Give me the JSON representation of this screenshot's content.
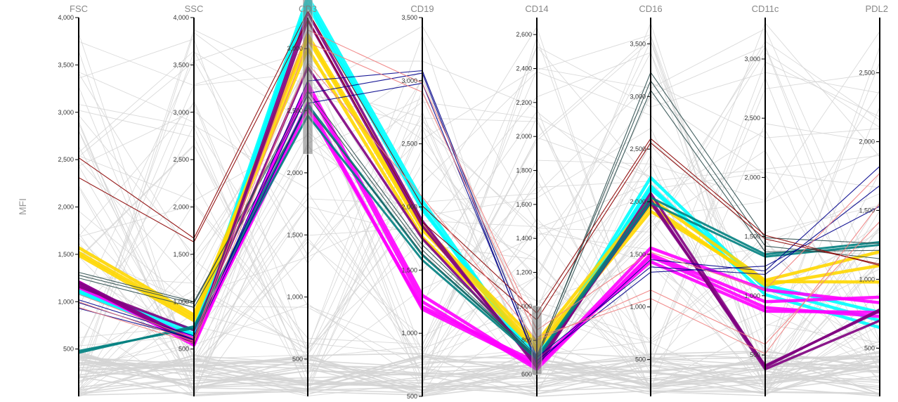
{
  "chart_data": {
    "type": "parallel-coordinates",
    "ylabel": "MFI",
    "dimensions": [
      "FSC",
      "SSC",
      "CD3",
      "CD19",
      "CD14",
      "CD16",
      "CD11c",
      "PDL2"
    ],
    "axes": [
      {
        "name": "FSC",
        "range": [
          0,
          4000
        ],
        "ticks": [
          500,
          1000,
          1500,
          2000,
          2500,
          3000,
          3500,
          4000
        ]
      },
      {
        "name": "SSC",
        "range": [
          0,
          4000
        ],
        "ticks": [
          500,
          1000,
          1500,
          2000,
          2500,
          3000,
          3500,
          4000
        ]
      },
      {
        "name": "CD3",
        "range": [
          200,
          3250
        ],
        "ticks": [
          500,
          1000,
          1500,
          2000,
          2500,
          3000
        ]
      },
      {
        "name": "CD19",
        "range": [
          500,
          3500
        ],
        "ticks": [
          500,
          1000,
          1500,
          2000,
          2500,
          3000,
          3500
        ]
      },
      {
        "name": "CD14",
        "range": [
          470,
          2700
        ],
        "ticks": [
          600,
          800,
          1000,
          1200,
          1400,
          1600,
          1800,
          2000,
          2200,
          2400,
          2600
        ]
      },
      {
        "name": "CD16",
        "range": [
          150,
          3750
        ],
        "ticks": [
          500,
          1000,
          1500,
          2000,
          2500,
          3000,
          3500
        ]
      },
      {
        "name": "CD11c",
        "range": [
          150,
          3350
        ],
        "ticks": [
          500,
          1000,
          1500,
          2000,
          2500,
          3000
        ]
      },
      {
        "name": "PDL2",
        "range": [
          150,
          2900
        ],
        "ticks": [
          500,
          1000,
          1500,
          2000,
          2500
        ]
      }
    ],
    "brushes": [
      {
        "axis": "CD3",
        "range": [
          2150,
          3500
        ]
      },
      {
        "axis": "CD14",
        "range": [
          600,
          1000
        ]
      }
    ],
    "highlighted_series": [
      {
        "color": "#00FFFF",
        "values": [
          1120,
          700,
          3420,
          2050,
          660,
          2230,
          1060,
          700
        ]
      },
      {
        "color": "#00FFFF",
        "values": [
          1100,
          660,
          3380,
          2000,
          650,
          2150,
          1010,
          650
        ]
      },
      {
        "color": "#00FFFF",
        "values": [
          1090,
          640,
          3350,
          1980,
          700,
          2120,
          1090,
          760
        ]
      },
      {
        "color": "#FFD700",
        "values": [
          1570,
          860,
          3110,
          1850,
          790,
          2030,
          1130,
          1200
        ]
      },
      {
        "color": "#FFD700",
        "values": [
          1520,
          830,
          3080,
          1820,
          760,
          1960,
          1090,
          1100
        ]
      },
      {
        "color": "#FFD700",
        "values": [
          1490,
          800,
          3000,
          1760,
          740,
          1910,
          1120,
          980
        ]
      },
      {
        "color": "#FF00FF",
        "values": [
          1210,
          560,
          2720,
          1300,
          640,
          1560,
          1050,
          830
        ]
      },
      {
        "color": "#FF00FF",
        "values": [
          1190,
          540,
          2690,
          1250,
          630,
          1500,
          950,
          870
        ]
      },
      {
        "color": "#FF00FF",
        "values": [
          1180,
          590,
          2560,
          1190,
          650,
          1480,
          900,
          730
        ]
      },
      {
        "color": "#FF00FF",
        "values": [
          1150,
          610,
          2520,
          1210,
          670,
          1430,
          870,
          760
        ]
      },
      {
        "color": "#800080",
        "values": [
          1210,
          590,
          3290,
          1890,
          640,
          2080,
          400,
          780
        ]
      },
      {
        "color": "#800080",
        "values": [
          1190,
          560,
          3230,
          1850,
          660,
          2020,
          380,
          700
        ]
      },
      {
        "color": "#800080",
        "values": [
          1160,
          700,
          2850,
          1750,
          680,
          1990,
          410,
          770
        ]
      },
      {
        "color": "#008080",
        "values": [
          480,
          720,
          2550,
          1620,
          700,
          2040,
          1350,
          1270
        ]
      },
      {
        "color": "#008080",
        "values": [
          460,
          740,
          2460,
          1580,
          690,
          1990,
          1330,
          1250
        ]
      },
      {
        "color": "#2F4F4F",
        "values": [
          1310,
          1000,
          2620,
          1660,
          700,
          3230,
          1490,
          1260
        ]
      },
      {
        "color": "#2F4F4F",
        "values": [
          1280,
          980,
          2660,
          1700,
          710,
          3150,
          1420,
          1150
        ]
      },
      {
        "color": "#2F4F4F",
        "values": [
          1250,
          940,
          2530,
          1630,
          690,
          3060,
          1370,
          1210
        ]
      },
      {
        "color": "#00008B",
        "values": [
          1020,
          640,
          2640,
          3060,
          660,
          1450,
          1210,
          1820
        ]
      },
      {
        "color": "#00008B",
        "values": [
          990,
          600,
          2740,
          3080,
          700,
          1380,
          1180,
          1680
        ]
      },
      {
        "color": "#00008B",
        "values": [
          930,
          610,
          2560,
          2980,
          680,
          1330,
          1250,
          1530
        ]
      },
      {
        "color": "#8B0000",
        "values": [
          2520,
          1670,
          3300,
          2010,
          960,
          2600,
          1510,
          1100
        ]
      },
      {
        "color": "#8B0000",
        "values": [
          2310,
          1630,
          3230,
          1880,
          920,
          2560,
          1480,
          1110
        ]
      },
      {
        "color": "#F08080",
        "values": [
          1080,
          610,
          3150,
          2980,
          860,
          1520,
          1050,
          1770
        ]
      },
      {
        "color": "#F08080",
        "values": [
          1000,
          580,
          3050,
          2910,
          820,
          1080,
          510,
          1550
        ]
      },
      {
        "color": "#F08080",
        "values": [
          940,
          560,
          2880,
          2080,
          800,
          1160,
          590,
          1420
        ]
      }
    ],
    "background_color": "#D3D3D3",
    "background_line_count": 90,
    "grid": false
  }
}
